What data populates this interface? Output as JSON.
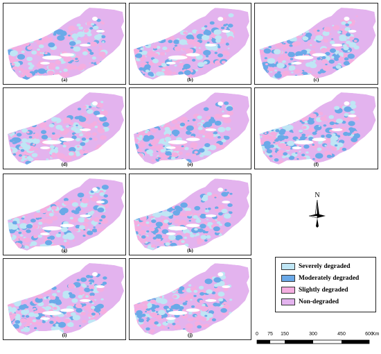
{
  "map": {
    "panels": [
      {
        "label": "(a)",
        "pattern": 0
      },
      {
        "label": "(b)",
        "pattern": 1
      },
      {
        "label": "(c)",
        "pattern": 2
      },
      {
        "label": "(d)",
        "pattern": 3
      },
      {
        "label": "(e)",
        "pattern": 4
      },
      {
        "label": "(f)",
        "pattern": 5
      },
      {
        "label": "(g)",
        "pattern": 6
      },
      {
        "label": "(h)",
        "pattern": 7
      },
      {
        "label": "(i)",
        "pattern": 8
      },
      {
        "label": "(j)",
        "pattern": 9
      }
    ],
    "north_arrow": {
      "label": "N",
      "icon": "north-arrow-icon"
    },
    "legend": {
      "items": [
        {
          "label": "Severely degraded",
          "color": "#bfe6f5"
        },
        {
          "label": "Moderately degraded",
          "color": "#6aa9e8"
        },
        {
          "label": "Slightly degraded",
          "color": "#f4aee0"
        },
        {
          "label": "Non-degraded",
          "color": "#e3b3ee"
        }
      ]
    },
    "scale_bar": {
      "ticks": [
        "0",
        "75",
        "150",
        "300",
        "450",
        "600"
      ],
      "unit": "Km"
    }
  }
}
